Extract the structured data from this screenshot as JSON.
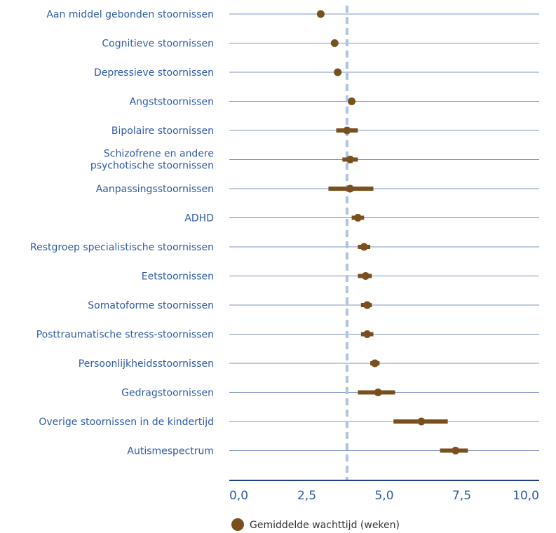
{
  "chart_data": {
    "type": "scatter",
    "title": "",
    "xlabel": "",
    "ylabel": "",
    "xlim": [
      0,
      10
    ],
    "xticks": [
      0,
      2.5,
      5,
      7.5,
      10
    ],
    "xtick_labels": [
      "0,0",
      "2,5",
      "5,0",
      "7,5",
      "10,0"
    ],
    "reference_line": 3.8,
    "categories": [
      [
        "Aan middel gebonden stoornissen"
      ],
      [
        "Cognitieve stoornissen"
      ],
      [
        "Depressieve stoornissen"
      ],
      [
        "Angststoornissen"
      ],
      [
        "Bipolaire stoornissen"
      ],
      [
        "Schizofrene en andere",
        "psychotische stoornissen"
      ],
      [
        "Aanpassingsstoornissen"
      ],
      [
        "ADHD"
      ],
      [
        "Restgroep specialistische stoornissen"
      ],
      [
        "Eetstoornissen"
      ],
      [
        "Somatoforme stoornissen"
      ],
      [
        "Posttraumatische stress-stoornissen"
      ],
      [
        "Persoonlijkheidsstoornissen"
      ],
      [
        "Gedragstoornissen"
      ],
      [
        "Overige stoornissen in de kindertijd"
      ],
      [
        "Autismespectrum"
      ]
    ],
    "series": [
      {
        "name": "Gemiddelde wachttijd (weken)",
        "values": [
          2.95,
          3.4,
          3.5,
          3.95,
          3.8,
          3.9,
          3.9,
          4.15,
          4.35,
          4.4,
          4.45,
          4.45,
          4.7,
          4.8,
          6.2,
          7.3
        ],
        "lower": [
          null,
          null,
          null,
          null,
          3.45,
          3.65,
          3.2,
          3.95,
          4.15,
          4.15,
          4.25,
          4.25,
          4.55,
          4.15,
          5.3,
          6.8
        ],
        "upper": [
          null,
          null,
          null,
          null,
          4.15,
          4.15,
          4.65,
          4.35,
          4.55,
          4.6,
          4.6,
          4.65,
          4.85,
          5.35,
          7.05,
          7.7
        ]
      }
    ],
    "colors": {
      "marker": "#7a4f1e",
      "interval": "#7a4f1e",
      "gridline": "#7f95c6",
      "axis": "#1f3f8a",
      "reference": "#b0c4e3",
      "label": "#2e5aa7"
    },
    "legend_placement": "bottom-center"
  }
}
